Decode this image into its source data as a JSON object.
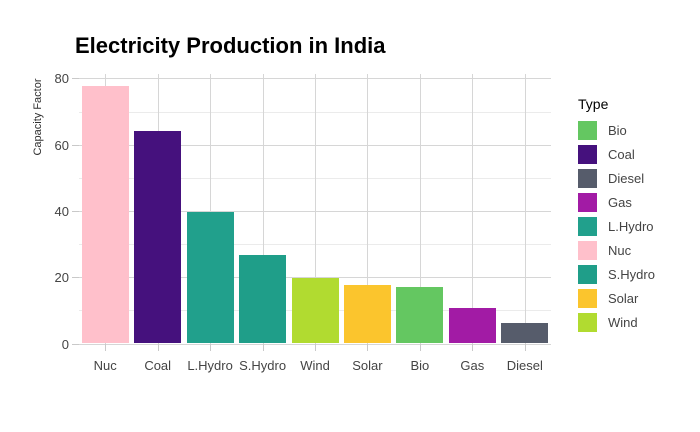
{
  "title": "Electricity Production in India",
  "chart_data": {
    "type": "bar",
    "title": "Electricity Production in India",
    "xlabel": "",
    "ylabel": "Capacity Factor",
    "categories": [
      "Nuc",
      "Coal",
      "L.Hydro",
      "S.Hydro",
      "Wind",
      "Solar",
      "Bio",
      "Gas",
      "Diesel"
    ],
    "values": [
      77.5,
      64,
      39.5,
      26.5,
      19.5,
      17.5,
      17,
      10.5,
      6
    ],
    "ylim": [
      0,
      81.3
    ],
    "major_yticks": [
      0,
      20,
      40,
      60,
      80
    ],
    "minor_yticks": [
      10,
      30,
      50,
      70
    ],
    "grid": true,
    "legend_title": "Type",
    "legend_position": "right",
    "colors": {
      "Bio": "#64c761",
      "Coal": "#45117d",
      "Diesel": "#565c6b",
      "Gas": "#a21ba5",
      "L.Hydro": "#21a08c",
      "Nuc": "#ffc0cb",
      "S.Hydro": "#1f9e89",
      "Solar": "#fbc52d",
      "Wind": "#b1db30"
    }
  },
  "legend": {
    "title": "Type",
    "items": [
      {
        "label": "Bio",
        "color": "#64c761"
      },
      {
        "label": "Coal",
        "color": "#45117d"
      },
      {
        "label": "Diesel",
        "color": "#565c6b"
      },
      {
        "label": "Gas",
        "color": "#a21ba5"
      },
      {
        "label": "L.Hydro",
        "color": "#21a08c"
      },
      {
        "label": "Nuc",
        "color": "#ffc0cb"
      },
      {
        "label": "S.Hydro",
        "color": "#1f9e89"
      },
      {
        "label": "Solar",
        "color": "#fbc52d"
      },
      {
        "label": "Wind",
        "color": "#b1db30"
      }
    ]
  }
}
